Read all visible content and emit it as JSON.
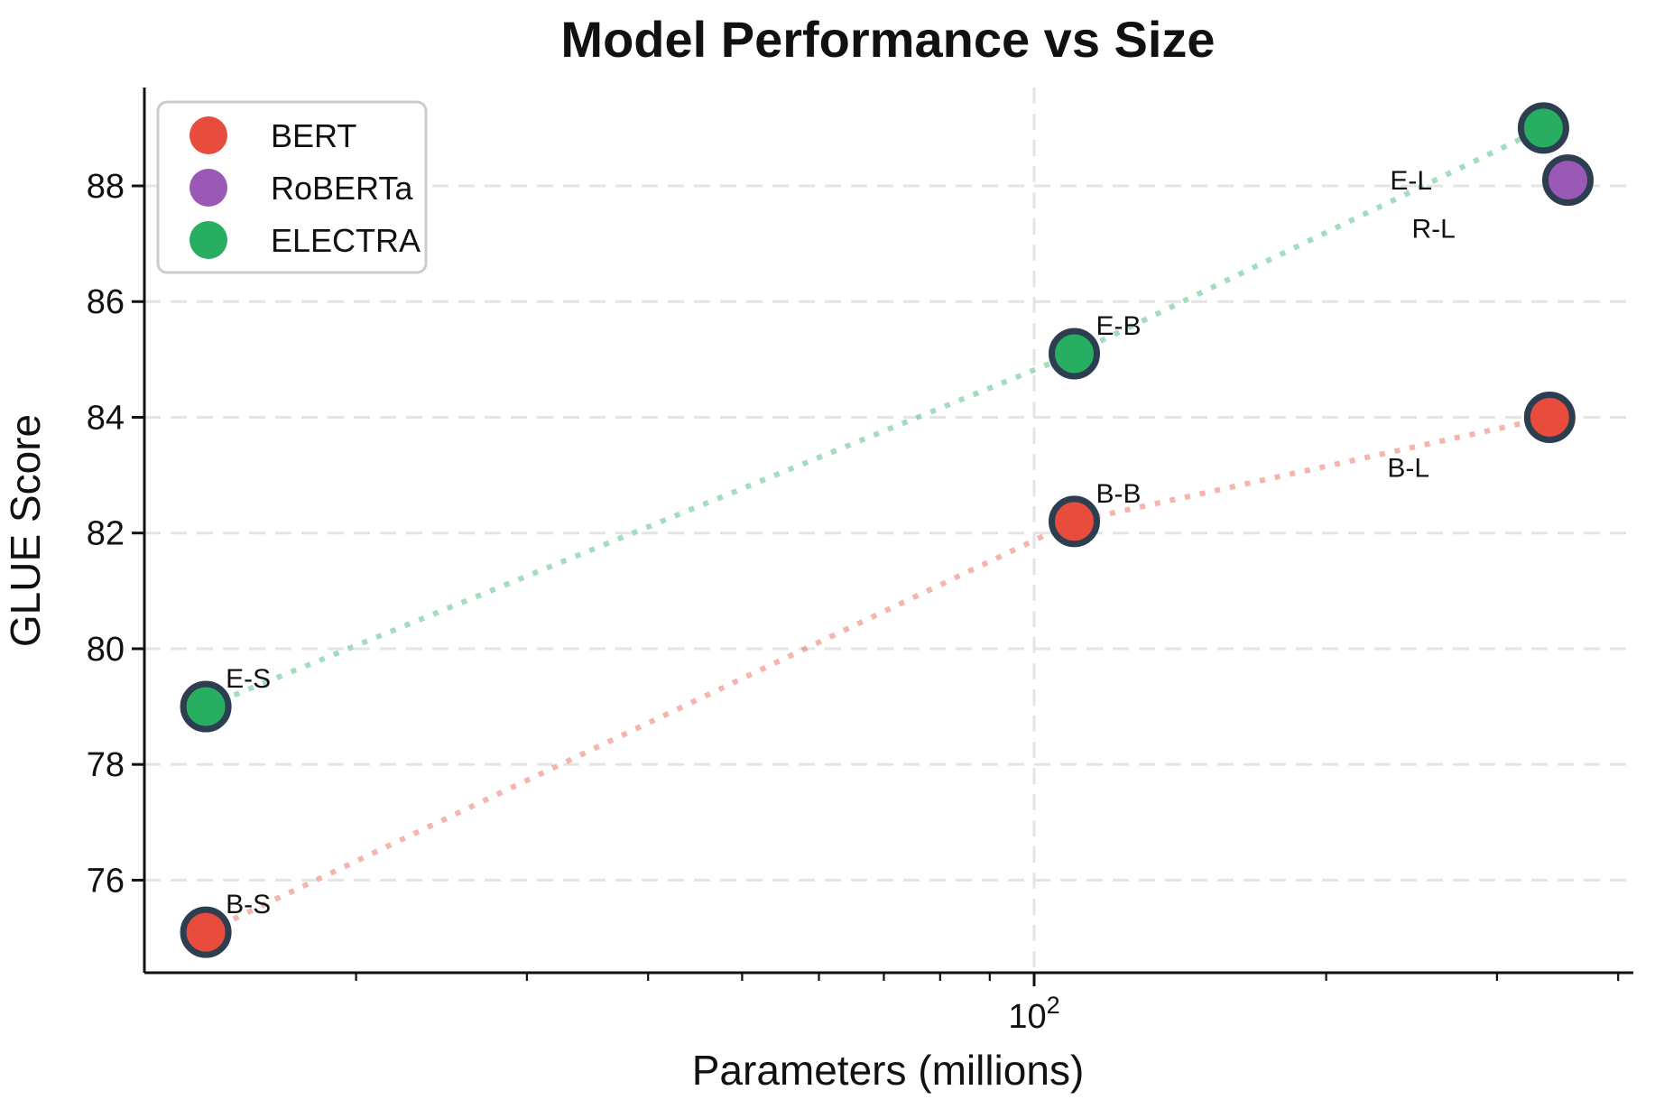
{
  "chart_data": {
    "type": "scatter",
    "title": "Model Performance vs Size",
    "xlabel": "Parameters (millions)",
    "ylabel": "GLUE Score",
    "x_scale": "log",
    "xlim": [
      12.1,
      412
    ],
    "ylim": [
      74.4,
      89.7
    ],
    "y_ticks": [
      76,
      78,
      80,
      82,
      84,
      86,
      88
    ],
    "x_major_tick": {
      "value": 100,
      "label_base": "10",
      "label_exponent": "2"
    },
    "x_minor_ticks": [
      20,
      30,
      40,
      50,
      60,
      70,
      80,
      90,
      200,
      300,
      400
    ],
    "grid": {
      "horizontal_at": [
        76,
        78,
        80,
        82,
        84,
        86,
        88
      ],
      "vertical_at": [
        100
      ],
      "style": "dashed",
      "color": "#e4e4e4"
    },
    "marker": {
      "edge_color": "#2c3e50"
    },
    "series": [
      {
        "name": "BERT",
        "color": "#e74c3c",
        "trend_color": "rgba(231,76,60,0.42)",
        "points": [
          {
            "x": 14,
            "y": 75.1,
            "label": "B-S",
            "label_dx": 22,
            "label_dy": -21
          },
          {
            "x": 110,
            "y": 82.2,
            "label": "B-B",
            "label_dx": 24,
            "label_dy": -21
          },
          {
            "x": 340,
            "y": 84.0,
            "label": "B-L",
            "label_dx": -180,
            "label_dy": 66
          }
        ]
      },
      {
        "name": "RoBERTa",
        "color": "#9b59b6",
        "trend_color": null,
        "points": [
          {
            "x": 355,
            "y": 88.1,
            "label": "R-L",
            "label_dx": -173,
            "label_dy": 64
          }
        ]
      },
      {
        "name": "ELECTRA",
        "color": "#27ae60",
        "trend_color": "rgba(39,174,96,0.42)",
        "points": [
          {
            "x": 14,
            "y": 79.0,
            "label": "E-S",
            "label_dx": 22,
            "label_dy": -21
          },
          {
            "x": 110,
            "y": 85.1,
            "label": "E-B",
            "label_dx": 24,
            "label_dy": -21
          },
          {
            "x": 335,
            "y": 89.0,
            "label": "E-L",
            "label_dx": -170,
            "label_dy": 68
          }
        ]
      }
    ],
    "legend": {
      "position": "upper-left",
      "items": [
        {
          "label": "BERT",
          "color": "#e74c3c"
        },
        {
          "label": "RoBERTa",
          "color": "#9b59b6"
        },
        {
          "label": "ELECTRA",
          "color": "#27ae60"
        }
      ]
    }
  }
}
